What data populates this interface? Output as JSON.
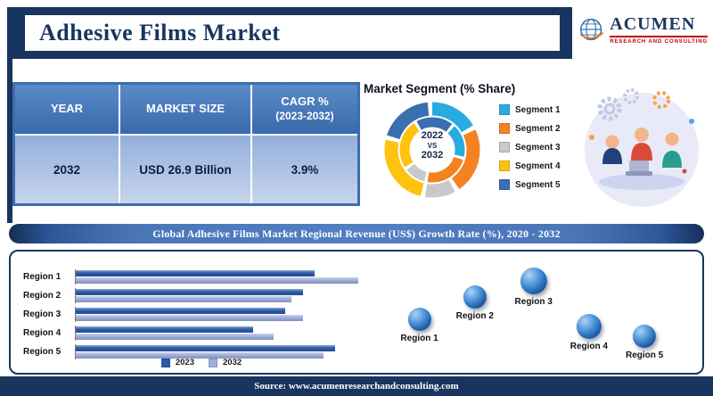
{
  "header": {
    "title": "Adhesive Films Market",
    "logo_name": "ACUMEN",
    "logo_subtitle": "RESEARCH AND CONSULTING"
  },
  "summary_table": {
    "col_headers": [
      "YEAR",
      "MARKET SIZE",
      "CAGR %"
    ],
    "cagr_subheader": "(2023-2032)",
    "row": {
      "year": "2032",
      "market_size": "USD 26.9 Billion",
      "cagr": "3.9%"
    }
  },
  "segment_chart": {
    "title": "Market Segment (% Share)",
    "center": {
      "line1": "2022",
      "line2": "VS",
      "line3": "2032"
    }
  },
  "regional_banner": "Global Adhesive Films Market Regional Revenue (US$) Growth Rate (%), 2020 - 2032",
  "footer": "Source: www.acumenresearchandconsulting.com",
  "colors": {
    "primary_navy": "#17355e",
    "table_header_blue": "#3f6cb0",
    "table_row_blue": "#9ab4dd",
    "banner_blue": "#4a76b8",
    "logo_red": "#c00000",
    "sphere_blue": "#2a6db5"
  },
  "chart_data": [
    {
      "type": "pie",
      "variant": "double-ring-donut",
      "title": "Market Segment (% Share)",
      "center_label": "2022 VS 2032",
      "legend_position": "right",
      "segments": [
        {
          "label": "Segment 1",
          "value": 18,
          "color": "#29abe2"
        },
        {
          "label": "Segment 2",
          "value": 24,
          "color": "#f58220"
        },
        {
          "label": "Segment 3",
          "value": 12,
          "color": "#c9c9c9"
        },
        {
          "label": "Segment 4",
          "value": 26,
          "color": "#ffc20e"
        },
        {
          "label": "Segment 5",
          "value": 20,
          "color": "#3a6fb0"
        }
      ]
    },
    {
      "type": "bar",
      "orientation": "horizontal",
      "title": "Global Adhesive Films Market Regional Revenue (US$) Growth Rate (%), 2020 - 2032",
      "categories": [
        "Region 1",
        "Region 2",
        "Region 3",
        "Region 4",
        "Region 5"
      ],
      "series": [
        {
          "name": "2023",
          "color": "#2d5ba8",
          "values": [
            82,
            78,
            72,
            61,
            89
          ]
        },
        {
          "name": "2032",
          "color": "#9fb0dd",
          "values": [
            97,
            74,
            78,
            68,
            85
          ]
        }
      ],
      "xlim": [
        0,
        100
      ],
      "value_axis_labels": false,
      "legend_position": "bottom"
    },
    {
      "type": "scatter",
      "style": "3d-spheres",
      "color": "#2a6db5",
      "points": [
        {
          "label": "Region 1",
          "x_pct": 16,
          "y_top_pct": 47,
          "size": 26
        },
        {
          "label": "Region 2",
          "x_pct": 33,
          "y_top_pct": 27,
          "size": 26
        },
        {
          "label": "Region 3",
          "x_pct": 51,
          "y_top_pct": 11,
          "size": 30
        },
        {
          "label": "Region 4",
          "x_pct": 68,
          "y_top_pct": 52,
          "size": 28
        },
        {
          "label": "Region 5",
          "x_pct": 85,
          "y_top_pct": 62,
          "size": 26
        }
      ]
    }
  ]
}
